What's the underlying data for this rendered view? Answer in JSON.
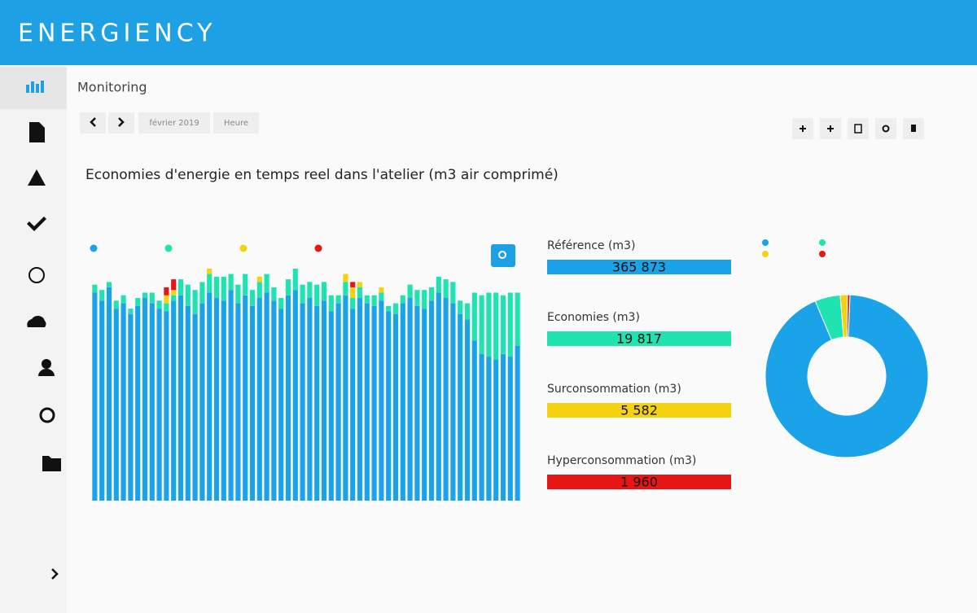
{
  "header": {
    "logo": "ENERGIENCY"
  },
  "page": {
    "title": "Monitoring",
    "period": "février 2019",
    "granularity": "Heure"
  },
  "chart_data": {
    "type": "bar",
    "stacked": true,
    "title": "Economies d'energie en temps reel dans l'atelier (m3 air comprimé)",
    "series": [
      {
        "color": "#1aa3e8",
        "values": [
          78,
          75,
          80,
          72,
          74,
          70,
          73,
          76,
          74,
          72,
          71,
          75,
          77,
          73,
          70,
          74,
          78,
          76,
          75,
          79,
          74,
          77,
          73,
          76,
          78,
          75,
          72,
          77,
          79,
          74,
          76,
          73,
          75,
          71,
          74,
          77,
          72,
          76,
          74,
          73,
          75,
          71,
          70,
          74,
          76,
          73,
          72,
          75,
          78,
          76,
          74,
          70,
          68,
          60,
          55,
          54,
          53,
          55,
          54,
          58
        ]
      },
      {
        "color": "#20e3b2",
        "values": [
          3,
          4,
          2,
          3,
          3,
          2,
          3,
          2,
          4,
          3,
          3,
          2,
          6,
          8,
          9,
          8,
          7,
          8,
          9,
          6,
          7,
          8,
          6,
          6,
          7,
          5,
          4,
          6,
          8,
          7,
          6,
          8,
          7,
          6,
          3,
          5,
          4,
          4,
          3,
          4,
          3,
          2,
          4,
          3,
          5,
          6,
          7,
          5,
          6,
          7,
          8,
          5,
          6,
          18,
          22,
          24,
          25,
          22,
          24,
          20
        ]
      },
      {
        "color": "#f5d20f",
        "values": [
          0,
          0,
          0,
          0,
          0,
          0,
          0,
          0,
          0,
          0,
          3,
          2,
          0,
          0,
          0,
          0,
          2,
          0,
          0,
          0,
          0,
          0,
          0,
          2,
          0,
          0,
          0,
          0,
          0,
          0,
          0,
          0,
          0,
          0,
          0,
          3,
          4,
          2,
          0,
          0,
          2,
          0,
          0,
          0,
          0,
          0,
          0,
          0,
          0,
          0,
          0,
          0,
          0,
          0,
          0,
          0,
          0,
          0,
          0,
          0
        ]
      },
      {
        "color": "#e81515",
        "values": [
          0,
          0,
          0,
          0,
          0,
          0,
          0,
          0,
          0,
          0,
          3,
          4,
          0,
          0,
          0,
          0,
          0,
          0,
          0,
          0,
          0,
          0,
          0,
          0,
          0,
          0,
          0,
          0,
          0,
          0,
          0,
          0,
          0,
          0,
          0,
          0,
          2,
          0,
          0,
          0,
          0,
          0,
          0,
          0,
          0,
          0,
          0,
          0,
          0,
          0,
          0,
          0,
          0,
          0,
          0,
          0,
          0,
          0,
          0,
          0
        ]
      }
    ]
  },
  "kpis": [
    {
      "label": "Référence (m3)",
      "value": 365873,
      "value_label": "365 873",
      "color": "#1aa3e8"
    },
    {
      "label": "Economies (m3)",
      "value": 19817,
      "value_label": "19 817",
      "color": "#20e3b2"
    },
    {
      "label": "Surconsommation (m3)",
      "value": 5582,
      "value_label": "5 582",
      "color": "#f5d20f"
    },
    {
      "label": "Hyperconsommation (m3)",
      "value": 1960,
      "value_label": "1 960",
      "color": "#e81515"
    }
  ]
}
